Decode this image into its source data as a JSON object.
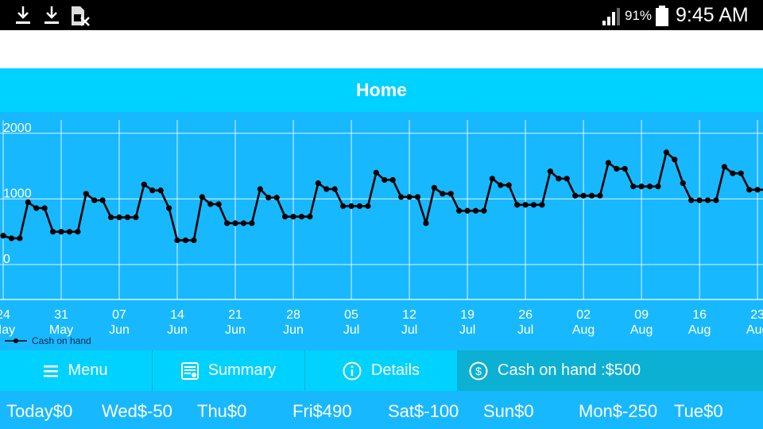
{
  "status_bar": {
    "battery": "91%",
    "time": "9:45 AM"
  },
  "header": {
    "title": "Home"
  },
  "chart_data": {
    "type": "line",
    "title": "",
    "xlabel": "",
    "ylabel": "",
    "ylim": [
      -500,
      2200
    ],
    "y_ticks": [
      {
        "value": 2000,
        "label": "2000"
      },
      {
        "value": 1000,
        "label": "1000"
      },
      {
        "value": 0,
        "label": "0"
      }
    ],
    "x_ticks": [
      {
        "day": 0,
        "label_day": "24",
        "label_month": "May"
      },
      {
        "day": 7,
        "label_day": "31",
        "label_month": "May"
      },
      {
        "day": 14,
        "label_day": "07",
        "label_month": "Jun"
      },
      {
        "day": 21,
        "label_day": "14",
        "label_month": "Jun"
      },
      {
        "day": 28,
        "label_day": "21",
        "label_month": "Jun"
      },
      {
        "day": 35,
        "label_day": "28",
        "label_month": "Jun"
      },
      {
        "day": 42,
        "label_day": "05",
        "label_month": "Jul"
      },
      {
        "day": 49,
        "label_day": "12",
        "label_month": "Jul"
      },
      {
        "day": 56,
        "label_day": "19",
        "label_month": "Jul"
      },
      {
        "day": 63,
        "label_day": "26",
        "label_month": "Jul"
      },
      {
        "day": 70,
        "label_day": "02",
        "label_month": "Aug"
      },
      {
        "day": 77,
        "label_day": "09",
        "label_month": "Aug"
      },
      {
        "day": 84,
        "label_day": "16",
        "label_month": "Aug"
      },
      {
        "day": 91,
        "label_day": "23",
        "label_month": "Aug"
      }
    ],
    "legend": {
      "position": "bottom-left"
    },
    "series": [
      {
        "name": "Cash on hand",
        "color": "#000000",
        "values": [
          440,
          400,
          400,
          950,
          860,
          860,
          500,
          500,
          500,
          500,
          1080,
          980,
          980,
          720,
          720,
          720,
          720,
          1220,
          1130,
          1130,
          860,
          370,
          370,
          370,
          1030,
          920,
          920,
          630,
          630,
          630,
          630,
          1150,
          1020,
          1020,
          730,
          730,
          730,
          730,
          1240,
          1150,
          1150,
          890,
          890,
          890,
          890,
          1400,
          1290,
          1290,
          1030,
          1030,
          1030,
          630,
          1170,
          1080,
          1080,
          820,
          820,
          820,
          820,
          1310,
          1210,
          1210,
          910,
          910,
          910,
          910,
          1420,
          1310,
          1310,
          1050,
          1050,
          1050,
          1050,
          1550,
          1460,
          1460,
          1190,
          1190,
          1190,
          1190,
          1710,
          1600,
          1240,
          980,
          980,
          980,
          980,
          1490,
          1390,
          1390,
          1140,
          1140,
          1140
        ]
      }
    ]
  },
  "tabs": {
    "menu": "Menu",
    "summary": "Summary",
    "details": "Details",
    "cash": "Cash on hand :$500"
  },
  "week": [
    {
      "label": "Today$0"
    },
    {
      "label": "Wed$-50"
    },
    {
      "label": "Thu$0"
    },
    {
      "label": "Fri$490"
    },
    {
      "label": "Sat$-100"
    },
    {
      "label": "Sun$0"
    },
    {
      "label": "Mon$-250"
    },
    {
      "label": "Tue$0"
    }
  ]
}
